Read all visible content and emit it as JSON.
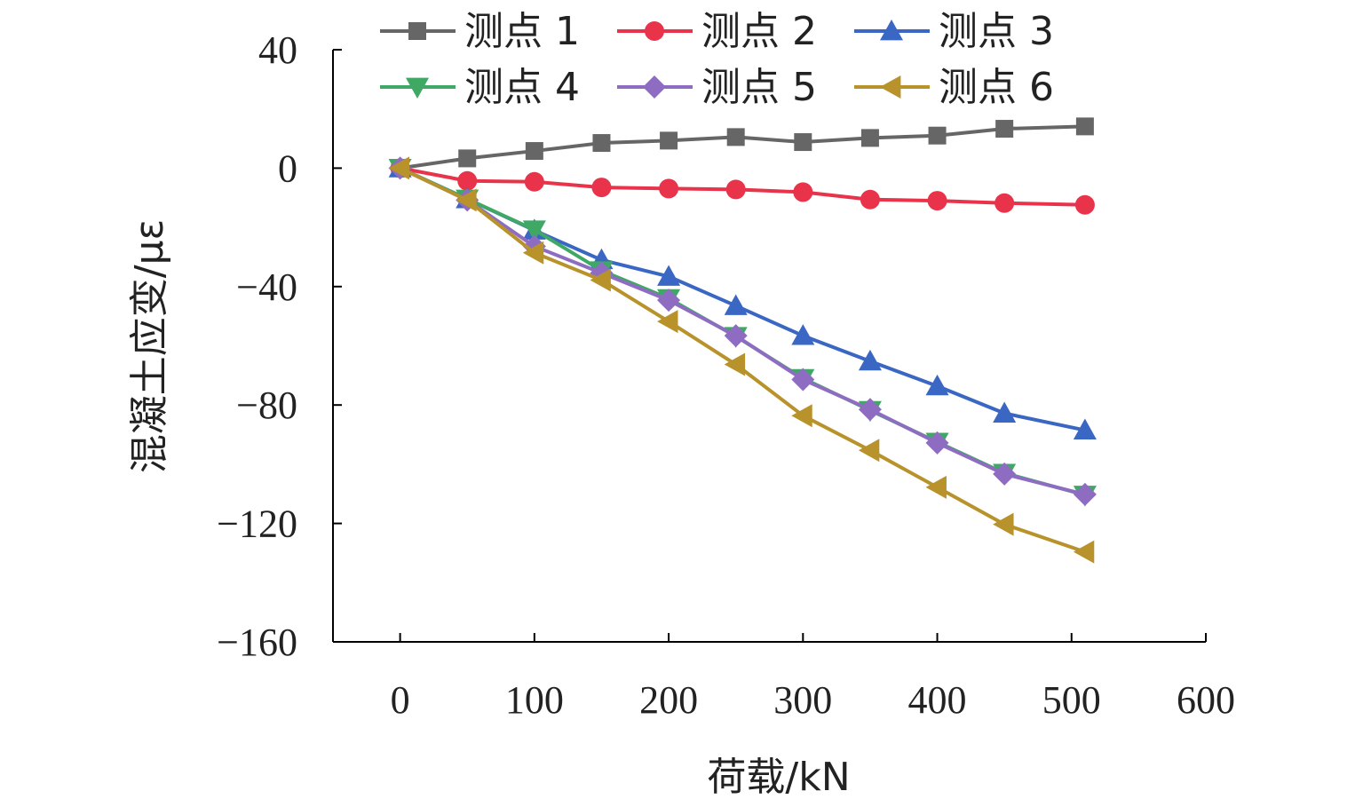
{
  "chart_data": {
    "type": "line",
    "title": "",
    "xlabel": "荷载/kN",
    "ylabel": "混凝土应变/με",
    "xlim": [
      -50,
      600
    ],
    "ylim": [
      -160,
      40
    ],
    "x_ticks": [
      "0",
      "100",
      "200",
      "300",
      "400",
      "500",
      "600"
    ],
    "y_ticks": [
      "40",
      "0",
      "−40",
      "−80",
      "−120",
      "−160"
    ],
    "x_tick_values": [
      0,
      100,
      200,
      300,
      400,
      500,
      600
    ],
    "y_tick_values": [
      40,
      0,
      -40,
      -80,
      -120,
      -160
    ],
    "grid": false,
    "legend_position": "top",
    "x": [
      0,
      50,
      100,
      150,
      200,
      250,
      300,
      350,
      400,
      450,
      510
    ],
    "series": [
      {
        "name": "测点 1",
        "color": "#666666",
        "marker": "square",
        "values": [
          0,
          3.3,
          5.8,
          8.5,
          9.3,
          10.5,
          8.8,
          10.2,
          11,
          13.3,
          14.1
        ]
      },
      {
        "name": "测点 2",
        "color": "#e8334a",
        "marker": "circle",
        "values": [
          0,
          -4.3,
          -4.6,
          -6.5,
          -6.9,
          -7.2,
          -8.1,
          -10.6,
          -11,
          -11.8,
          -12.4
        ]
      },
      {
        "name": "测点 3",
        "color": "#3a67c4",
        "marker": "triangle-up",
        "values": [
          0,
          -10.4,
          -21,
          -31,
          -36.6,
          -46.5,
          -56.6,
          -65.2,
          -73.6,
          -82.8,
          -88.5
        ]
      },
      {
        "name": "测点 4",
        "color": "#3fa865",
        "marker": "triangle-down",
        "values": [
          0,
          -10.4,
          -20.8,
          -34.6,
          -44,
          -56.8,
          -71,
          -81.8,
          -92.5,
          -103,
          -110.4
        ]
      },
      {
        "name": "测点 5",
        "color": "#8e6cc2",
        "marker": "diamond",
        "values": [
          0,
          -10.8,
          -26.4,
          -35.4,
          -44.6,
          -56.6,
          -71.4,
          -81.5,
          -92.8,
          -103.3,
          -110.2
        ]
      },
      {
        "name": "测点 6",
        "color": "#b8922a",
        "marker": "triangle-left",
        "values": [
          0,
          -10.8,
          -28.6,
          -37.8,
          -51.8,
          -66.3,
          -83.6,
          -95.3,
          -107.8,
          -120.3,
          -129.6
        ]
      }
    ]
  }
}
